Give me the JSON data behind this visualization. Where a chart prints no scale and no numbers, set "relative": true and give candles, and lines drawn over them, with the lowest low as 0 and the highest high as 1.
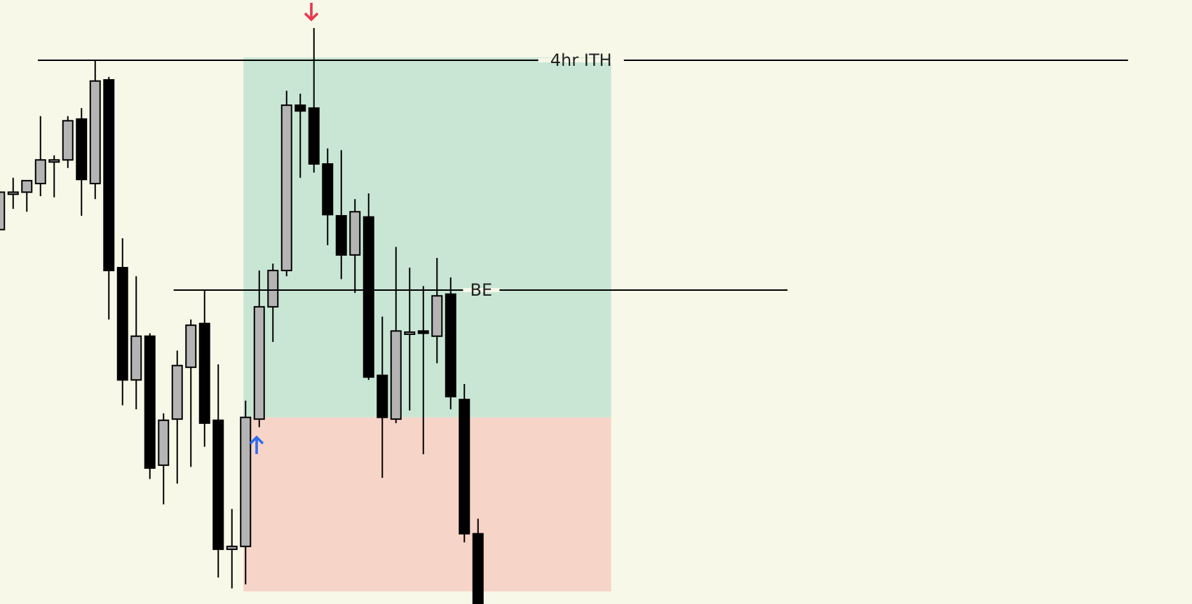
{
  "chart_data": {
    "type": "candlestick",
    "relative": true,
    "categories": [
      null,
      null,
      null,
      null,
      null,
      null,
      null,
      null,
      null,
      null,
      null,
      null,
      null,
      null,
      null,
      null,
      null,
      null,
      null,
      null,
      null,
      null,
      null,
      null,
      null,
      null,
      null,
      null,
      null,
      null,
      null,
      null,
      null,
      null,
      null,
      null
    ],
    "ohlc": [
      [
        0.65,
        0.715,
        0.65,
        0.715
      ],
      [
        0.715,
        0.74,
        0.686,
        0.715
      ],
      [
        0.715,
        0.735,
        0.681,
        0.735
      ],
      [
        0.73,
        0.847,
        0.708,
        0.771
      ],
      [
        0.771,
        0.779,
        0.706,
        0.771
      ],
      [
        0.771,
        0.847,
        0.757,
        0.839
      ],
      [
        0.842,
        0.861,
        0.674,
        0.737
      ],
      [
        0.73,
        0.944,
        0.703,
        0.908
      ],
      [
        0.91,
        0.915,
        0.494,
        0.579
      ],
      [
        0.584,
        0.635,
        0.345,
        0.389
      ],
      [
        0.389,
        0.569,
        0.338,
        0.465
      ],
      [
        0.465,
        0.47,
        0.217,
        0.236
      ],
      [
        0.241,
        0.331,
        0.173,
        0.319
      ],
      [
        0.321,
        0.44,
        0.209,
        0.414
      ],
      [
        0.411,
        0.494,
        0.238,
        0.484
      ],
      [
        0.487,
        0.545,
        0.273,
        0.314
      ],
      [
        0.319,
        0.416,
        0.046,
        0.095
      ],
      [
        0.095,
        0.165,
        0.027,
        0.1
      ],
      [
        0.1,
        0.353,
        0.034,
        0.324
      ],
      [
        0.321,
        0.579,
        0.307,
        0.516
      ],
      [
        0.516,
        0.591,
        0.455,
        0.579
      ],
      [
        0.579,
        0.891,
        0.569,
        0.866
      ],
      [
        0.866,
        0.886,
        0.74,
        0.856
      ],
      [
        0.861,
        1,
        0.749,
        0.764
      ],
      [
        0.764,
        0.791,
        0.623,
        0.676
      ],
      [
        0.674,
        0.788,
        0.564,
        0.606
      ],
      [
        0.606,
        0.703,
        0.54,
        0.681
      ],
      [
        0.672,
        0.713,
        0.389,
        0.394
      ],
      [
        0.397,
        0.499,
        0.219,
        0.324
      ],
      [
        0.321,
        0.62,
        0.314,
        0.474
      ],
      [
        0.472,
        0.584,
        0.336,
        0.472
      ],
      [
        0.474,
        0.552,
        0.26,
        0.47
      ],
      [
        0.465,
        0.601,
        0.418,
        0.535
      ],
      [
        0.538,
        0.567,
        0.338,
        0.36
      ],
      [
        0.355,
        0.382,
        0.107,
        0.122
      ],
      [
        0.122,
        0.148,
        0,
        0
      ]
    ],
    "colors": [
      "#b4b4b4",
      "#b4b4b4",
      "#b4b4b4",
      "#b4b4b4",
      "#b4b4b4",
      "#b4b4b4",
      "#000000",
      "#b4b4b4",
      "#000000",
      "#000000",
      "#b4b4b4",
      "#000000",
      "#b4b4b4",
      "#b4b4b4",
      "#b4b4b4",
      "#000000",
      "#000000",
      "#b4b4b4",
      "#b4b4b4",
      "#b4b4b4",
      "#b4b4b4",
      "#b4b4b4",
      "#000000",
      "#000000",
      "#000000",
      "#000000",
      "#b4b4b4",
      "#000000",
      "#000000",
      "#b4b4b4",
      "#b4b4b4",
      "#000000",
      "#b4b4b4",
      "#000000",
      "#000000",
      "#000000"
    ],
    "ref_lines": [
      {
        "axis": "y",
        "value": 0.944,
        "label": "4hr ITH",
        "color": "#000000"
      },
      {
        "axis": "y",
        "value": 0.545,
        "label": "BE",
        "color": "#000000"
      }
    ],
    "bands": [
      {
        "axis": "y",
        "from": 0.324,
        "to": 0.949,
        "color": "#c9e6d5"
      },
      {
        "axis": "y",
        "from": 0.022,
        "to": 0.324,
        "color": "#f7d4c8"
      }
    ],
    "grid": false,
    "legend": false
  }
}
